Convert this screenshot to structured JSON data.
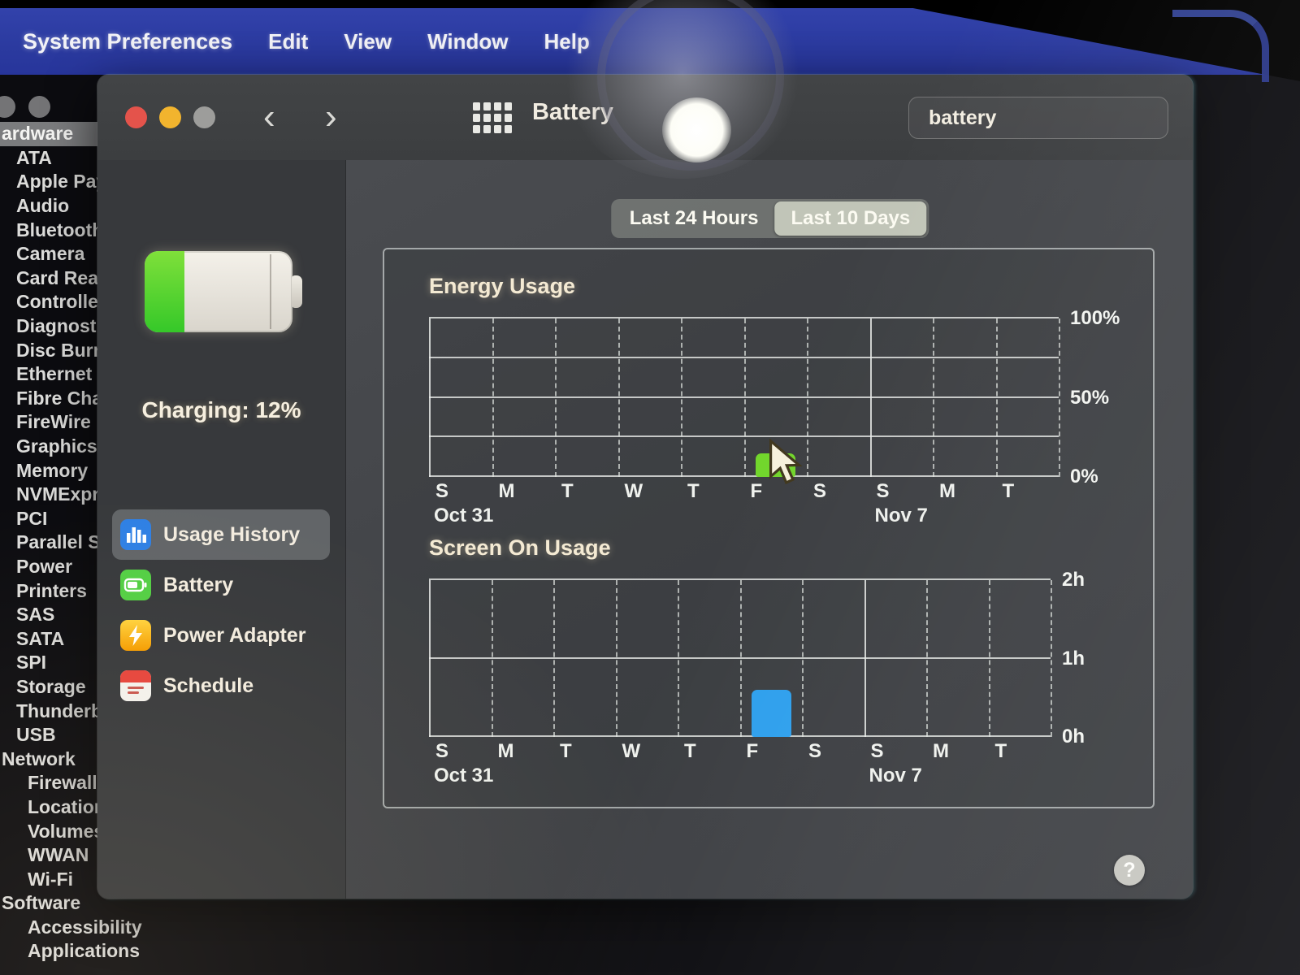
{
  "menu_bar": {
    "app_menu": "System Preferences",
    "items": [
      "Edit",
      "View",
      "Window",
      "Help"
    ]
  },
  "background_sidebar": {
    "rows": [
      {
        "label": "ardware",
        "indent": 0,
        "selected": true
      },
      {
        "label": "ATA",
        "indent": 1
      },
      {
        "label": "Apple Pay",
        "indent": 1
      },
      {
        "label": "Audio",
        "indent": 1
      },
      {
        "label": "Bluetooth",
        "indent": 1
      },
      {
        "label": "Camera",
        "indent": 1
      },
      {
        "label": "Card Read",
        "indent": 1
      },
      {
        "label": "Controller",
        "indent": 1
      },
      {
        "label": "Diagnosti",
        "indent": 1
      },
      {
        "label": "Disc Burn",
        "indent": 1
      },
      {
        "label": "Ethernet",
        "indent": 1
      },
      {
        "label": "Fibre Cha",
        "indent": 1
      },
      {
        "label": "FireWire",
        "indent": 1
      },
      {
        "label": "Graphics/",
        "indent": 1
      },
      {
        "label": "Memory",
        "indent": 1
      },
      {
        "label": "NVMExpre",
        "indent": 1
      },
      {
        "label": "PCI",
        "indent": 1
      },
      {
        "label": "Parallel S",
        "indent": 1
      },
      {
        "label": "Power",
        "indent": 1
      },
      {
        "label": "Printers",
        "indent": 1
      },
      {
        "label": "SAS",
        "indent": 1
      },
      {
        "label": "SATA",
        "indent": 1
      },
      {
        "label": "SPI",
        "indent": 1
      },
      {
        "label": "Storage",
        "indent": 1
      },
      {
        "label": "Thunderb",
        "indent": 1
      },
      {
        "label": "USB",
        "indent": 1
      },
      {
        "label": "Network",
        "indent": 0
      },
      {
        "label": "Firewall",
        "indent": 2
      },
      {
        "label": "Locations",
        "indent": 2
      },
      {
        "label": "Volumes",
        "indent": 2
      },
      {
        "label": "WWAN",
        "indent": 2
      },
      {
        "label": "Wi-Fi",
        "indent": 2
      },
      {
        "label": "Software",
        "indent": 0
      },
      {
        "label": "Accessibility",
        "indent": 2
      },
      {
        "label": "Applications",
        "indent": 2
      }
    ]
  },
  "window": {
    "title": "Battery",
    "search": {
      "value": "battery"
    },
    "sidebar": {
      "battery_status": "Charging: 12%",
      "items": [
        {
          "label": "Usage History",
          "icon": "bar-chart-icon",
          "icon_color": "#2f80e4",
          "selected": true
        },
        {
          "label": "Battery",
          "icon": "battery-icon",
          "icon_color": "#53cf44",
          "selected": false
        },
        {
          "label": "Power Adapter",
          "icon": "lightning-icon",
          "icon_color": "#f7b511",
          "selected": false
        },
        {
          "label": "Schedule",
          "icon": "calendar-icon",
          "icon_color": "#ffffff",
          "selected": false
        }
      ]
    },
    "segmented": {
      "options": [
        "Last 24 Hours",
        "Last 10 Days"
      ],
      "selected_index": 1
    },
    "help_label": "?"
  },
  "chart_data": [
    {
      "type": "bar",
      "title": "Energy Usage",
      "categories": [
        "S",
        "M",
        "T",
        "W",
        "T",
        "F",
        "S",
        "S",
        "M",
        "T"
      ],
      "values": [
        0,
        0,
        0,
        0,
        0,
        15,
        0,
        0,
        0,
        0
      ],
      "ylabel": "",
      "ylim": [
        0,
        100
      ],
      "yticks": [
        {
          "label": "100%",
          "value": 100
        },
        {
          "label": "50%",
          "value": 50
        },
        {
          "label": "0%",
          "value": 0
        }
      ],
      "gridline_values": [
        0,
        25,
        50,
        75,
        100
      ],
      "date_labels": [
        {
          "index": 0,
          "label": "Oct 31"
        },
        {
          "index": 7,
          "label": "Nov 7"
        }
      ],
      "solid_boundaries": [
        0,
        7
      ],
      "bar_color": "#72d62c",
      "legend": null
    },
    {
      "type": "bar",
      "title": "Screen On Usage",
      "categories": [
        "S",
        "M",
        "T",
        "W",
        "T",
        "F",
        "S",
        "S",
        "M",
        "T"
      ],
      "values": [
        0,
        0,
        0,
        0,
        0,
        0.6,
        0,
        0,
        0,
        0
      ],
      "ylabel": "",
      "ylim": [
        0,
        2
      ],
      "yticks": [
        {
          "label": "2h",
          "value": 2
        },
        {
          "label": "1h",
          "value": 1
        },
        {
          "label": "0h",
          "value": 0
        }
      ],
      "gridline_values": [
        0,
        1,
        2
      ],
      "date_labels": [
        {
          "index": 0,
          "label": "Oct 31"
        },
        {
          "index": 7,
          "label": "Nov 7"
        }
      ],
      "solid_boundaries": [
        0,
        7
      ],
      "bar_color": "#2d9fed",
      "legend": null
    }
  ]
}
